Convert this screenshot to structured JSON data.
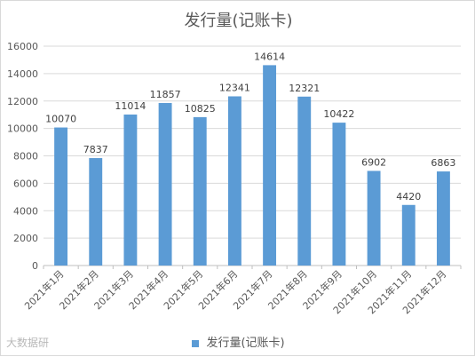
{
  "chart_data": {
    "type": "bar",
    "title": "发行量(记账卡)",
    "categories": [
      "2021年1月",
      "2021年2月",
      "2021年3月",
      "2021年4月",
      "2021年5月",
      "2021年6月",
      "2021年7月",
      "2021年8月",
      "2021年9月",
      "2021年10月",
      "2021年11月",
      "2021年12月"
    ],
    "series": [
      {
        "name": "发行量(记账卡)",
        "values": [
          10070,
          7837,
          11014,
          11857,
          10825,
          12341,
          14614,
          12321,
          10422,
          6902,
          4420,
          6863
        ]
      }
    ],
    "data_labels": [
      "10070",
      "7837",
      "11014",
      "11857",
      "10825",
      "12341",
      "14614",
      "12321",
      "10422",
      "6902",
      "4420",
      "6863"
    ],
    "ylim": [
      0,
      16000
    ],
    "yticks": [
      0,
      2000,
      4000,
      6000,
      8000,
      10000,
      12000,
      14000,
      16000
    ],
    "grid": true,
    "legend_position": "bottom",
    "bar_color": "#5b9bd5",
    "xlabel": "",
    "ylabel": ""
  },
  "watermark": "大数据研"
}
